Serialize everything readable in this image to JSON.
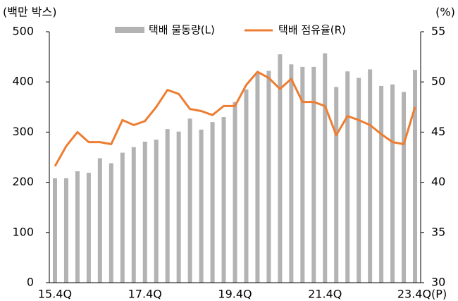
{
  "chart_data": {
    "type": "bar_line",
    "y_label": "(백만 박스)",
    "y2_label": "(%)",
    "categories": [
      "15.4Q",
      null,
      null,
      null,
      null,
      null,
      null,
      null,
      "17.4Q",
      null,
      null,
      null,
      null,
      null,
      null,
      null,
      "19.4Q",
      null,
      null,
      null,
      null,
      null,
      null,
      null,
      "21.4Q",
      null,
      null,
      null,
      null,
      null,
      null,
      null,
      "23.4Q(P)"
    ],
    "series": [
      {
        "name": "택배 물동량(L)",
        "type": "bar",
        "color": "#b3b3b3",
        "axis": "y",
        "values": [
          208,
          208,
          222,
          219,
          248,
          238,
          259,
          270,
          281,
          285,
          306,
          301,
          327,
          305,
          320,
          330,
          360,
          385,
          418,
          422,
          455,
          435,
          430,
          430,
          457,
          390,
          421,
          408,
          425,
          392,
          395,
          380,
          424
        ]
      },
      {
        "name": "택배 점유율(R)",
        "type": "line",
        "color": "#ed7d31",
        "axis": "y2",
        "values": [
          41.6,
          43.6,
          45.0,
          44.0,
          44.0,
          43.8,
          46.2,
          45.7,
          46.1,
          47.5,
          49.2,
          48.8,
          47.3,
          47.1,
          46.7,
          47.6,
          47.6,
          49.7,
          51.0,
          50.4,
          49.3,
          50.3,
          48.0,
          48.0,
          47.6,
          44.7,
          46.6,
          46.2,
          45.7,
          44.8,
          44.0,
          43.8,
          47.5
        ]
      }
    ],
    "ylim": [
      0,
      500
    ],
    "yticks": [
      0,
      100,
      200,
      300,
      400,
      500
    ],
    "y2lim": [
      30,
      55
    ],
    "y2ticks": [
      30,
      35,
      40,
      45,
      50,
      55
    ],
    "legend": "top"
  }
}
